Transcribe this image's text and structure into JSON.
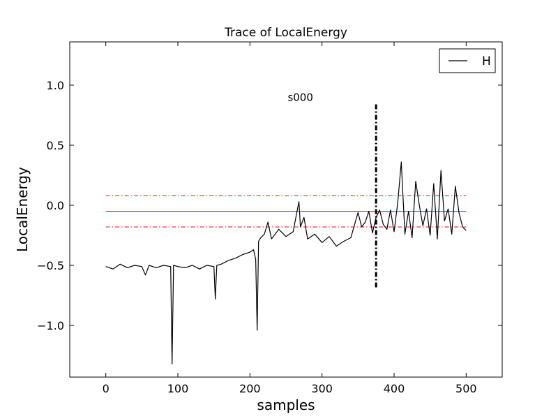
{
  "chart_data": {
    "type": "line",
    "title": "Trace of LocalEnergy",
    "xlabel": "samples",
    "ylabel": "LocalEnergy",
    "xlim": [
      -50,
      550
    ],
    "ylim": [
      -1.43,
      1.36
    ],
    "xticks": [
      0,
      100,
      200,
      300,
      400,
      500
    ],
    "yticks": [
      -1.0,
      -0.5,
      0.0,
      0.5,
      1.0
    ],
    "ytick_labels": [
      "−1.0",
      "−0.5",
      "0.0",
      "0.5",
      "1.0"
    ],
    "grid": false,
    "legend": {
      "position": "top-right",
      "entries": [
        "H"
      ]
    },
    "annotation": {
      "text": "s000",
      "x": 270,
      "y": 0.87
    },
    "equilibration_line": {
      "x": 375,
      "y_range": [
        -0.7,
        0.84
      ],
      "style": "dash-dot",
      "color": "#000000"
    },
    "mean": {
      "value": -0.05,
      "x_range": [
        0,
        500
      ],
      "color": "#ff0000"
    },
    "error_band": {
      "lower": -0.18,
      "upper": 0.08,
      "x_range": [
        0,
        500
      ],
      "style": "dash-dot",
      "color": "#ff0000"
    },
    "series": [
      {
        "name": "H",
        "color": "#000000",
        "x": [
          0,
          10,
          20,
          30,
          40,
          50,
          55,
          60,
          70,
          80,
          90,
          92,
          94,
          100,
          110,
          120,
          130,
          140,
          150,
          152,
          154,
          160,
          170,
          180,
          190,
          200,
          205,
          208,
          210,
          212,
          215,
          220,
          225,
          230,
          240,
          250,
          260,
          265,
          268,
          270,
          275,
          280,
          290,
          300,
          310,
          320,
          330,
          340,
          350,
          355,
          360,
          365,
          370,
          375,
          380,
          385,
          390,
          395,
          400,
          405,
          410,
          415,
          420,
          425,
          430,
          435,
          440,
          445,
          450,
          455,
          460,
          465,
          470,
          475,
          480,
          485,
          490,
          495,
          500
        ],
        "y": [
          -0.51,
          -0.53,
          -0.49,
          -0.52,
          -0.5,
          -0.51,
          -0.58,
          -0.5,
          -0.52,
          -0.5,
          -0.51,
          -1.32,
          -0.5,
          -0.51,
          -0.52,
          -0.5,
          -0.53,
          -0.5,
          -0.51,
          -0.78,
          -0.5,
          -0.49,
          -0.46,
          -0.44,
          -0.41,
          -0.39,
          -0.37,
          -0.45,
          -1.04,
          -0.3,
          -0.27,
          -0.24,
          -0.14,
          -0.28,
          -0.2,
          -0.26,
          -0.22,
          -0.06,
          0.03,
          -0.18,
          -0.1,
          -0.28,
          -0.24,
          -0.31,
          -0.26,
          -0.34,
          -0.3,
          -0.27,
          -0.06,
          -0.18,
          -0.14,
          -0.05,
          -0.23,
          -0.1,
          -0.04,
          -0.16,
          -0.2,
          -0.04,
          -0.22,
          0.02,
          0.36,
          -0.24,
          -0.05,
          -0.27,
          0.2,
          0.0,
          -0.17,
          -0.03,
          -0.25,
          0.18,
          -0.28,
          0.29,
          -0.13,
          -0.03,
          -0.24,
          0.16,
          -0.06,
          -0.18,
          -0.21
        ]
      }
    ]
  }
}
